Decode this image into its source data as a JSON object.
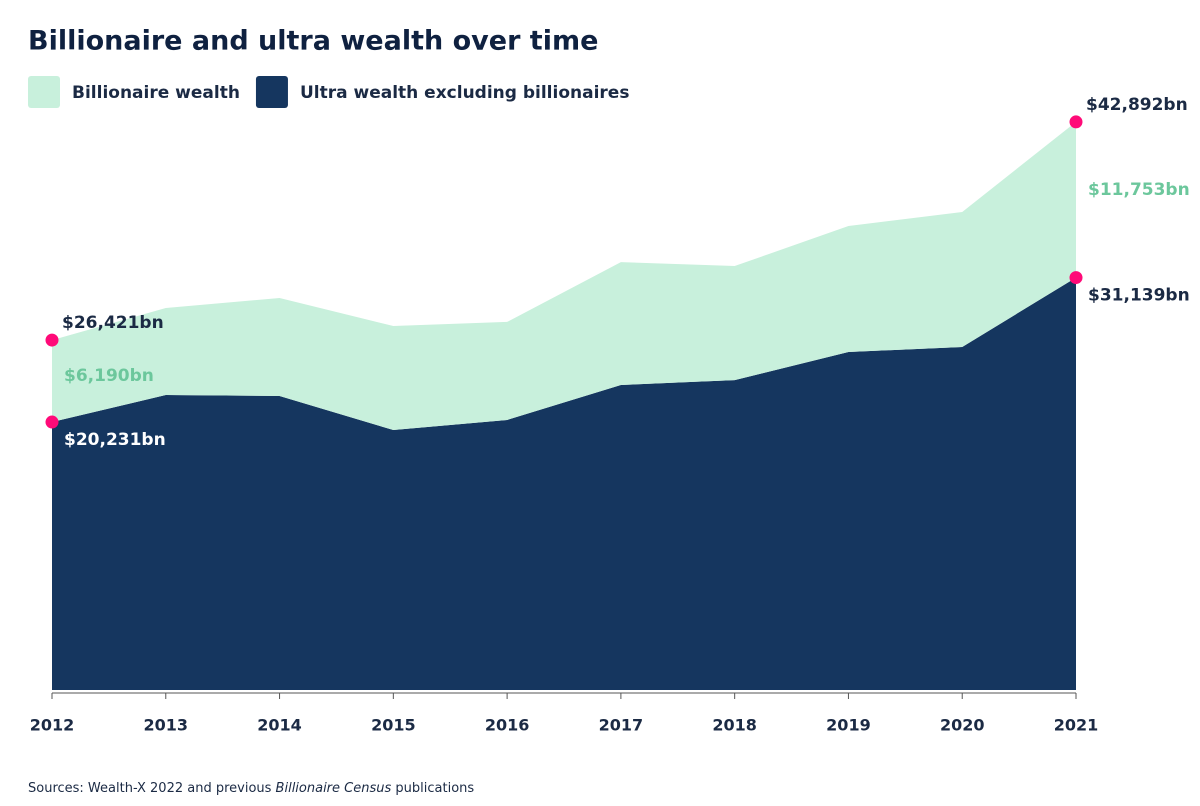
{
  "chart_data": {
    "type": "stacked_area",
    "title": "Billionaire and ultra wealth over time",
    "categories": [
      "2012",
      "2013",
      "2014",
      "2015",
      "2016",
      "2017",
      "2018",
      "2019",
      "2020",
      "2021"
    ],
    "series": [
      {
        "name": "Ultra wealth excluding billionaires",
        "color": "#15365f",
        "values": [
          20231,
          22270,
          22200,
          19630,
          20390,
          23030,
          23400,
          25520,
          25900,
          31139
        ],
        "value_labels": [
          "$20,231bn",
          null,
          null,
          null,
          null,
          null,
          null,
          null,
          null,
          "$31,139bn"
        ]
      },
      {
        "name": "Billionaire wealth",
        "color": "#c8f0dc",
        "values": [
          6190,
          6570,
          7400,
          7850,
          7400,
          9280,
          8610,
          9510,
          10190,
          11753
        ],
        "value_labels": [
          "$6,190bn",
          null,
          null,
          null,
          null,
          null,
          null,
          null,
          null,
          "$11,753bn"
        ]
      }
    ],
    "annotations": [
      {
        "text": "$26,421bn",
        "value": 26421,
        "index": 0
      },
      {
        "text": "$42,892bn",
        "value": 42892,
        "index": 9
      }
    ],
    "ylim": [
      0,
      45000
    ],
    "source": [
      "Sources: Wealth-X 2022 and previous ",
      "Billionaire Census",
      " publications"
    ]
  }
}
